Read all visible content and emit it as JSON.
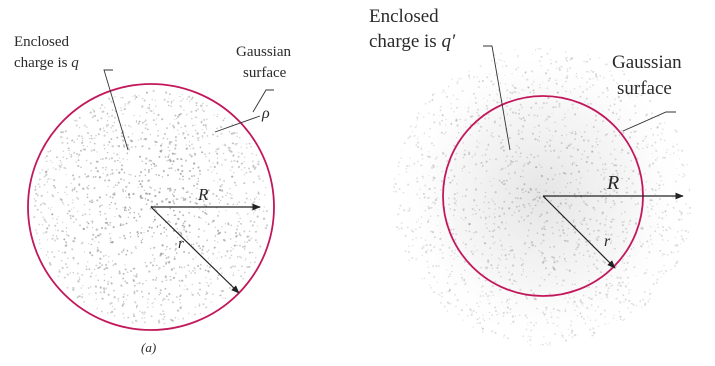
{
  "left_figure": {
    "enclosed_label_line1": "Enclosed",
    "enclosed_label_line2_prefix": "charge is ",
    "enclosed_charge_symbol": "q",
    "gaussian_label_line1": "Gaussian",
    "gaussian_label_line2": "surface",
    "density_symbol": "ρ",
    "radius_R": "R",
    "radius_r": "r",
    "caption": "(a)"
  },
  "right_figure": {
    "enclosed_label_line1": "Enclosed",
    "enclosed_label_line2_prefix": "charge is ",
    "enclosed_charge_symbol": "q′",
    "gaussian_label_line1": "Gaussian",
    "gaussian_label_line2": "surface",
    "radius_R": "R",
    "radius_r": "r"
  },
  "colors": {
    "gaussian_surface": "#c2185b",
    "charge_dots": "#8a8a8a",
    "text": "#2a2a2a",
    "arrows": "#222222"
  }
}
